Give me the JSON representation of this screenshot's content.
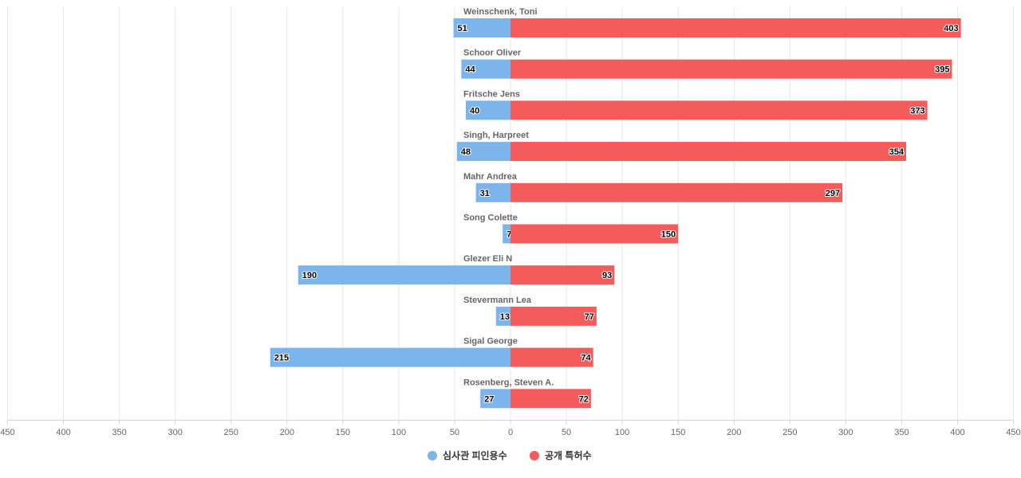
{
  "chart_data": {
    "type": "bar",
    "orientation": "horizontal-diverging",
    "title": "",
    "categories": [
      "Weinschenk, Toni",
      "Schoor Oliver",
      "Fritsche Jens",
      "Singh, Harpreet",
      "Mahr Andrea",
      "Song Colette",
      "Glezer Eli N",
      "Stevermann Lea",
      "Sigal George",
      "Rosenberg, Steven A."
    ],
    "series": [
      {
        "name": "심사관 피인용수",
        "color": "#7cb5ec",
        "side": "left",
        "values": [
          51,
          44,
          40,
          48,
          31,
          7,
          190,
          13,
          215,
          27
        ]
      },
      {
        "name": "공개 특허수",
        "color": "#f45b5b",
        "side": "right",
        "values": [
          403,
          395,
          373,
          354,
          297,
          150,
          93,
          77,
          74,
          72
        ]
      }
    ],
    "xlim": [
      -450,
      450
    ],
    "x_ticks": [
      "450",
      "400",
      "350",
      "300",
      "250",
      "200",
      "150",
      "100",
      "50",
      "0",
      "50",
      "100",
      "150",
      "200",
      "250",
      "300",
      "350",
      "400",
      "450"
    ],
    "grid": true,
    "legend": "bottom-center",
    "data_labels": true
  }
}
